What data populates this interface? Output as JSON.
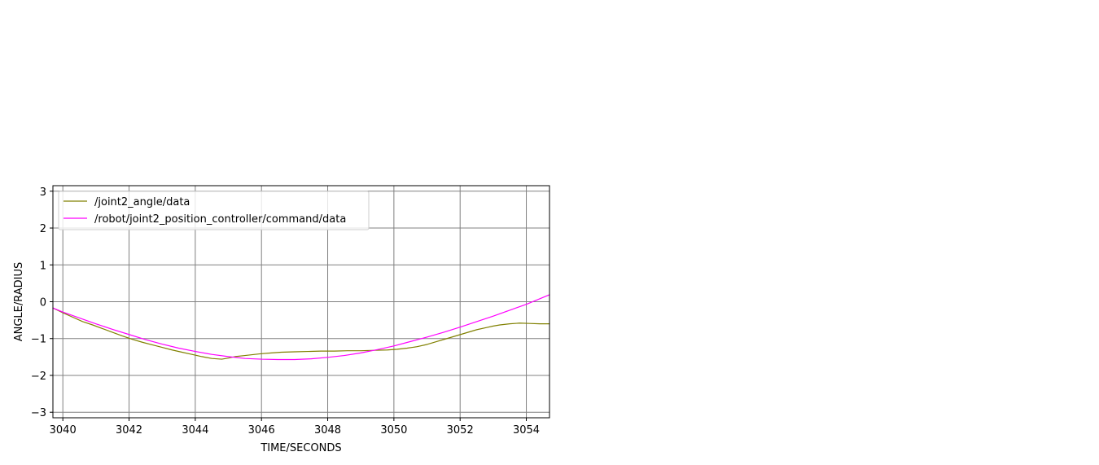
{
  "chart_data": {
    "type": "line",
    "xlabel": "TIME/SECONDS",
    "ylabel": "ANGLE/RADIUS",
    "xlim": [
      3039.7,
      3054.7
    ],
    "ylim": [
      -3.15,
      3.15
    ],
    "xticks": [
      3040,
      3042,
      3044,
      3046,
      3048,
      3050,
      3052,
      3054
    ],
    "yticks": [
      -3,
      -2,
      -1,
      0,
      1,
      2,
      3
    ],
    "xtick_labels": [
      "3040",
      "3042",
      "3044",
      "3046",
      "3048",
      "3050",
      "3052",
      "3054"
    ],
    "ytick_labels": [
      "−3",
      "−2",
      "−1",
      "0",
      "1",
      "2",
      "3"
    ],
    "grid": true,
    "legend_position": "top-left",
    "series": [
      {
        "name": "/joint2_angle/data",
        "color": "#808000",
        "x": [
          3039.7,
          3040.0,
          3040.3,
          3040.6,
          3040.9,
          3041.2,
          3041.5,
          3041.8,
          3042.1,
          3042.4,
          3042.7,
          3043.0,
          3043.3,
          3043.6,
          3043.9,
          3044.2,
          3044.5,
          3044.8,
          3045.0,
          3045.2,
          3045.5,
          3045.8,
          3046.0,
          3046.3,
          3046.6,
          3047.0,
          3047.4,
          3047.8,
          3048.2,
          3048.6,
          3049.0,
          3049.4,
          3049.8,
          3050.1,
          3050.4,
          3050.7,
          3051.0,
          3051.3,
          3051.6,
          3051.9,
          3052.2,
          3052.5,
          3052.8,
          3053.0,
          3053.2,
          3053.5,
          3053.8,
          3054.1,
          3054.4,
          3054.7
        ],
        "y": [
          -0.17,
          -0.3,
          -0.42,
          -0.54,
          -0.63,
          -0.73,
          -0.83,
          -0.93,
          -1.02,
          -1.1,
          -1.17,
          -1.24,
          -1.31,
          -1.37,
          -1.43,
          -1.49,
          -1.54,
          -1.56,
          -1.53,
          -1.49,
          -1.46,
          -1.43,
          -1.41,
          -1.39,
          -1.37,
          -1.36,
          -1.35,
          -1.34,
          -1.34,
          -1.33,
          -1.33,
          -1.32,
          -1.31,
          -1.29,
          -1.26,
          -1.22,
          -1.16,
          -1.08,
          -1.0,
          -0.92,
          -0.84,
          -0.76,
          -0.7,
          -0.66,
          -0.63,
          -0.6,
          -0.58,
          -0.59,
          -0.6,
          -0.6
        ]
      },
      {
        "name": "/robot/joint2_position_controller/command/data",
        "color": "#ff00ff",
        "x": [
          3039.7,
          3040.0,
          3040.5,
          3041.0,
          3041.5,
          3042.0,
          3042.5,
          3043.0,
          3043.5,
          3044.0,
          3044.5,
          3045.0,
          3045.5,
          3046.0,
          3046.5,
          3047.0,
          3047.5,
          3048.0,
          3048.5,
          3049.0,
          3049.5,
          3050.0,
          3050.5,
          3051.0,
          3051.5,
          3052.0,
          3052.5,
          3053.0,
          3053.5,
          3054.0,
          3054.7
        ],
        "y": [
          -0.17,
          -0.28,
          -0.44,
          -0.6,
          -0.75,
          -0.89,
          -1.03,
          -1.15,
          -1.26,
          -1.35,
          -1.43,
          -1.49,
          -1.54,
          -1.56,
          -1.57,
          -1.57,
          -1.55,
          -1.51,
          -1.46,
          -1.39,
          -1.3,
          -1.2,
          -1.08,
          -0.96,
          -0.83,
          -0.69,
          -0.54,
          -0.39,
          -0.23,
          -0.07,
          0.19
        ]
      }
    ]
  }
}
